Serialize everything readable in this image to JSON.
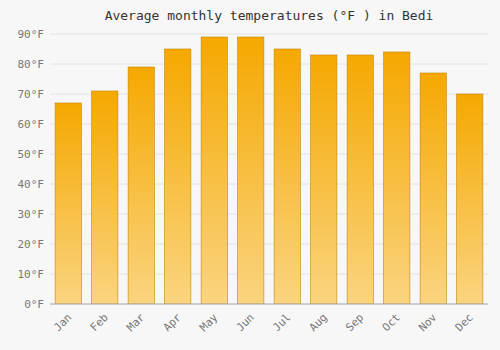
{
  "chart_data": {
    "type": "bar",
    "title": "Average monthly temperatures (°F ) in Bedi",
    "categories": [
      "Jan",
      "Feb",
      "Mar",
      "Apr",
      "May",
      "Jun",
      "Jul",
      "Aug",
      "Sep",
      "Oct",
      "Nov",
      "Dec"
    ],
    "values": [
      67,
      71,
      79,
      85,
      89,
      89,
      85,
      83,
      83,
      84,
      77,
      70
    ],
    "color": "#F5A800",
    "ylim": [
      0,
      90
    ],
    "yticks": [
      {
        "value": 0,
        "label": "0°F"
      },
      {
        "value": 10,
        "label": "10°F"
      },
      {
        "value": 20,
        "label": "20°F"
      },
      {
        "value": 30,
        "label": "30°F"
      },
      {
        "value": 40,
        "label": "40°F"
      },
      {
        "value": 50,
        "label": "50°F"
      },
      {
        "value": 60,
        "label": "60°F"
      },
      {
        "value": 70,
        "label": "70°F"
      },
      {
        "value": 80,
        "label": "80°F"
      },
      {
        "value": 90,
        "label": "90°F"
      }
    ],
    "grid": true
  }
}
